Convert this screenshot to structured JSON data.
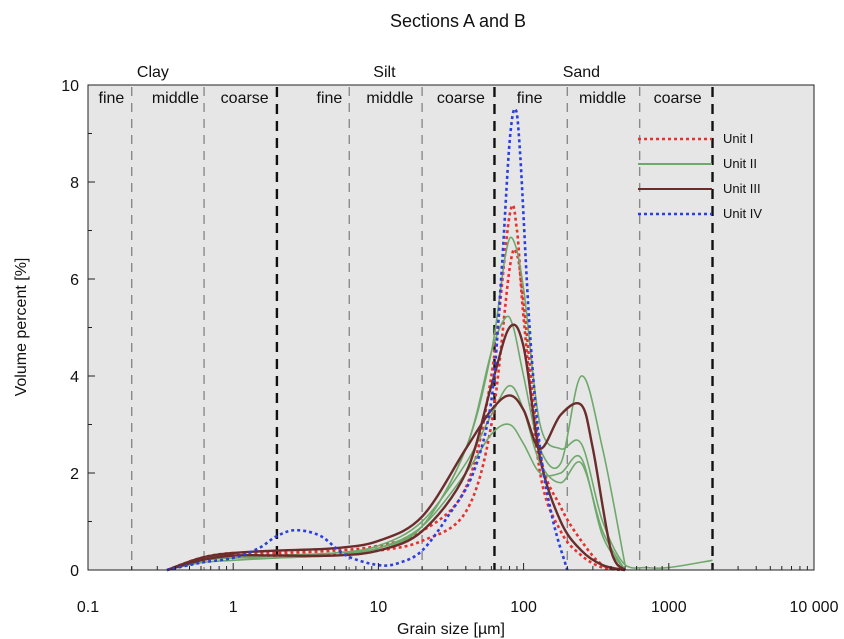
{
  "chart_data": {
    "type": "line",
    "title": "Sections A and B",
    "xlabel": "Grain size [µm]",
    "ylabel": "Volume percent [%]",
    "x_scale": "log",
    "xlim": [
      0.1,
      10000
    ],
    "ylim": [
      0,
      10
    ],
    "x_ticks": [
      0.1,
      1,
      10,
      100,
      1000,
      10000
    ],
    "x_tick_labels": [
      "0.1",
      "1",
      "10",
      "100",
      "1000",
      "10 000"
    ],
    "y_ticks": [
      0,
      2,
      4,
      6,
      8,
      10
    ],
    "y_tick_labels": [
      "0",
      "2",
      "4",
      "6",
      "8",
      "10"
    ],
    "grid": false,
    "background": "#e6e6e6",
    "legend_position": "top-right",
    "grain_classes": [
      {
        "label": "Clay",
        "center": 0.28
      },
      {
        "label": "Silt",
        "center": 11
      },
      {
        "label": "Sand",
        "center": 250
      }
    ],
    "subclasses": [
      {
        "label": "fine",
        "center": 0.145
      },
      {
        "label": "middle",
        "center": 0.4
      },
      {
        "label": "coarse",
        "center": 1.2
      },
      {
        "label": "fine",
        "center": 4.6
      },
      {
        "label": "middle",
        "center": 12
      },
      {
        "label": "coarse",
        "center": 37
      },
      {
        "label": "fine",
        "center": 110
      },
      {
        "label": "middle",
        "center": 350
      },
      {
        "label": "coarse",
        "center": 1150
      }
    ],
    "class_boundaries": [
      2,
      63,
      2000
    ],
    "subclass_boundaries": [
      0.2,
      0.63,
      6.3,
      20,
      200,
      630
    ],
    "legend": [
      {
        "name": "Unit I",
        "color": "#e8302e",
        "style": "dotted"
      },
      {
        "name": "Unit II",
        "color": "#6fa86b",
        "style": "solid"
      },
      {
        "name": "Unit III",
        "color": "#6b2c2c",
        "style": "solid"
      },
      {
        "name": "Unit IV",
        "color": "#2b3fe0",
        "style": "dotted"
      }
    ],
    "series": [
      {
        "name": "Unit I",
        "color": "#e8302e",
        "style": "dotted",
        "x": [
          0.35,
          0.6,
          1,
          2,
          5,
          10,
          20,
          40,
          60,
          80,
          90,
          100,
          130,
          180,
          250,
          350,
          500
        ],
        "y": [
          0,
          0.25,
          0.35,
          0.35,
          0.4,
          0.5,
          0.8,
          1.7,
          4.0,
          7.3,
          7.0,
          5.2,
          2.0,
          0.8,
          0.3,
          0.05,
          0
        ]
      },
      {
        "name": "Unit I",
        "color": "#e8302e",
        "style": "dotted",
        "x": [
          0.35,
          0.6,
          1,
          2,
          5,
          10,
          20,
          40,
          60,
          80,
          90,
          100,
          130,
          180,
          250,
          350,
          500
        ],
        "y": [
          0,
          0.22,
          0.3,
          0.3,
          0.33,
          0.4,
          0.6,
          1.2,
          3.0,
          6.2,
          6.5,
          5.5,
          2.4,
          1.3,
          0.6,
          0.1,
          0
        ]
      },
      {
        "name": "Unit II",
        "color": "#6fa86b",
        "style": "solid",
        "x": [
          0.35,
          0.6,
          1,
          2,
          5,
          10,
          20,
          40,
          60,
          75,
          85,
          100,
          130,
          180,
          250,
          350,
          500,
          700,
          1000,
          2000
        ],
        "y": [
          0,
          0.25,
          0.3,
          0.3,
          0.35,
          0.45,
          0.9,
          2.5,
          4.5,
          6.5,
          6.8,
          5.8,
          3.0,
          2.5,
          2.6,
          1.0,
          0.1,
          0.05,
          0.05,
          0.2
        ]
      },
      {
        "name": "Unit II",
        "color": "#6fa86b",
        "style": "solid",
        "x": [
          0.35,
          0.6,
          1,
          2,
          5,
          10,
          20,
          40,
          60,
          75,
          85,
          100,
          130,
          180,
          250,
          350,
          500
        ],
        "y": [
          0,
          0.2,
          0.25,
          0.25,
          0.3,
          0.4,
          0.9,
          2.5,
          4.5,
          5.2,
          5.0,
          4.0,
          2.5,
          2.2,
          4.0,
          2.5,
          0.1
        ]
      },
      {
        "name": "Unit II",
        "color": "#6fa86b",
        "style": "solid",
        "x": [
          0.35,
          0.6,
          1,
          2,
          5,
          10,
          20,
          40,
          60,
          80,
          100,
          130,
          180,
          250,
          350,
          500
        ],
        "y": [
          0,
          0.2,
          0.25,
          0.3,
          0.35,
          0.5,
          1.0,
          2.2,
          3.2,
          3.8,
          3.3,
          2.2,
          1.8,
          2.2,
          0.8,
          0
        ]
      },
      {
        "name": "Unit II",
        "color": "#6fa86b",
        "style": "solid",
        "x": [
          0.35,
          0.6,
          1,
          2,
          5,
          10,
          20,
          40,
          60,
          80,
          100,
          130,
          180,
          250,
          350,
          500
        ],
        "y": [
          0,
          0.15,
          0.2,
          0.25,
          0.3,
          0.45,
          0.9,
          2.0,
          2.8,
          3.0,
          2.6,
          2.0,
          2.0,
          2.3,
          0.7,
          0
        ]
      },
      {
        "name": "Unit III",
        "color": "#6b2c2c",
        "style": "solid",
        "x": [
          0.35,
          0.6,
          1,
          2,
          5,
          10,
          20,
          40,
          60,
          80,
          100,
          130,
          180,
          250,
          300,
          400,
          500
        ],
        "y": [
          0,
          0.25,
          0.35,
          0.4,
          0.45,
          0.6,
          1.1,
          2.5,
          3.3,
          3.6,
          3.3,
          2.5,
          3.2,
          3.4,
          2.5,
          0.4,
          0
        ]
      },
      {
        "name": "Unit III",
        "color": "#6b2c2c",
        "style": "solid",
        "x": [
          0.35,
          0.6,
          1,
          2,
          5,
          10,
          20,
          40,
          60,
          80,
          100,
          130,
          180,
          250,
          350,
          500
        ],
        "y": [
          0,
          0.2,
          0.3,
          0.3,
          0.3,
          0.4,
          0.8,
          2.0,
          3.8,
          5.0,
          4.6,
          2.3,
          1.0,
          0.4,
          0.1,
          0
        ]
      },
      {
        "name": "Unit IV",
        "color": "#2b3fe0",
        "style": "dotted",
        "x": [
          0.35,
          0.6,
          1,
          1.5,
          2,
          2.7,
          4,
          6,
          10,
          14,
          20,
          30,
          45,
          60,
          70,
          80,
          88,
          95,
          110,
          130,
          160,
          200
        ],
        "y": [
          0,
          0.15,
          0.25,
          0.45,
          0.7,
          0.82,
          0.7,
          0.3,
          0.1,
          0.15,
          0.4,
          1.1,
          2.0,
          3.5,
          6.0,
          8.8,
          9.5,
          8.5,
          5.0,
          2.5,
          1.0,
          0
        ]
      }
    ]
  }
}
